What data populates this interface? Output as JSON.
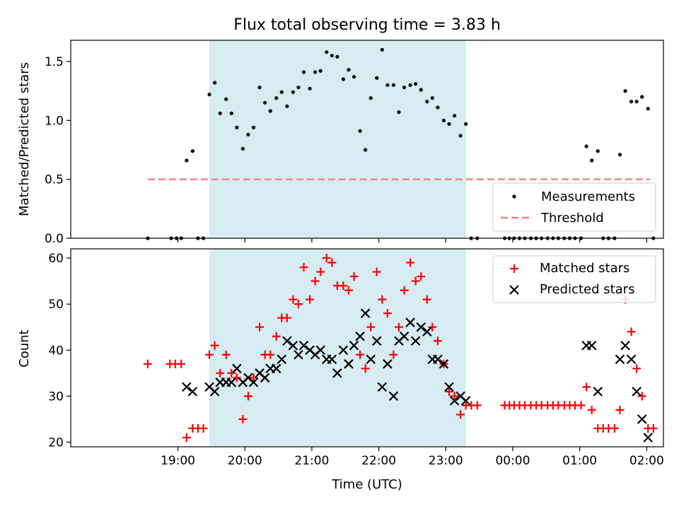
{
  "chart_data": {
    "type": "scatter",
    "title": "Flux total observing time = 3.83 h",
    "xlabel": "Time (UTC)",
    "x_ticks": [
      "19:00",
      "20:00",
      "21:00",
      "22:00",
      "23:00",
      "00:00",
      "01:00",
      "02:00"
    ],
    "x_range_hours": [
      17.4,
      26.25
    ],
    "highlight_span_hours": [
      19.47,
      23.3
    ],
    "highlight_color": "#add8e6",
    "panels": [
      {
        "ylabel": "Matched/Predicted stars",
        "ylim": [
          0,
          1.68
        ],
        "y_ticks": [
          "0.0",
          "0.5",
          "1.0",
          "1.5"
        ],
        "legend_position": "lower right",
        "series": [
          {
            "name": "Measurements",
            "marker": "dot",
            "color": "#000000",
            "x": [
              18.55,
              18.9,
              18.98,
              19.05,
              19.13,
              19.22,
              19.3,
              19.38,
              19.47,
              19.55,
              19.63,
              19.72,
              19.8,
              19.88,
              19.97,
              20.05,
              20.13,
              20.22,
              20.3,
              20.38,
              20.47,
              20.55,
              20.63,
              20.72,
              20.8,
              20.88,
              20.97,
              21.05,
              21.13,
              21.22,
              21.3,
              21.38,
              21.47,
              21.55,
              21.63,
              21.72,
              21.8,
              21.88,
              21.97,
              22.05,
              22.13,
              22.22,
              22.3,
              22.38,
              22.47,
              22.55,
              22.63,
              22.72,
              22.8,
              22.88,
              22.97,
              23.05,
              23.13,
              23.22,
              23.3,
              23.38,
              23.47,
              23.88,
              23.95,
              24.02,
              24.1,
              24.18,
              24.27,
              24.35,
              24.43,
              24.52,
              24.6,
              24.68,
              24.77,
              24.85,
              24.93,
              25.02,
              25.1,
              25.18,
              25.27,
              25.35,
              25.43,
              25.52,
              25.6,
              25.68,
              25.77,
              25.85,
              25.93,
              26.02,
              26.1
            ],
            "y": [
              0.0,
              0.0,
              0.0,
              0.0,
              0.66,
              0.74,
              0.0,
              0.0,
              1.22,
              1.32,
              1.06,
              1.18,
              1.06,
              0.94,
              0.76,
              0.88,
              0.94,
              1.28,
              1.15,
              1.08,
              1.19,
              1.24,
              1.12,
              1.24,
              1.28,
              1.41,
              1.27,
              1.41,
              1.42,
              1.58,
              1.55,
              1.54,
              1.35,
              1.43,
              1.37,
              0.91,
              0.75,
              1.19,
              1.36,
              1.6,
              1.3,
              1.3,
              1.07,
              1.28,
              1.3,
              1.31,
              1.26,
              1.16,
              1.19,
              1.11,
              1.0,
              0.97,
              1.04,
              0.87,
              0.97,
              0.0,
              0.0,
              0.0,
              0.0,
              0.0,
              0.0,
              0.0,
              0.0,
              0.0,
              0.0,
              0.0,
              0.0,
              0.0,
              0.0,
              0.0,
              0.0,
              0.0,
              0.78,
              0.66,
              0.74,
              0.0,
              0.0,
              0.0,
              0.71,
              1.25,
              1.16,
              1.16,
              1.2,
              1.1,
              0.0
            ]
          },
          {
            "name": "Threshold",
            "marker": "dashed-line",
            "color": "#f08080",
            "x": [
              18.55,
              26.05
            ],
            "y": [
              0.5,
              0.5
            ]
          }
        ]
      },
      {
        "ylabel": "Count",
        "ylim": [
          19,
          62
        ],
        "y_ticks": [
          "20",
          "30",
          "40",
          "50",
          "60"
        ],
        "legend_position": "upper right",
        "series": [
          {
            "name": "Matched stars",
            "marker": "plus",
            "color": "#ff0000",
            "x": [
              18.55,
              18.88,
              18.96,
              19.05,
              19.13,
              19.22,
              19.3,
              19.38,
              19.47,
              19.55,
              19.63,
              19.72,
              19.8,
              19.88,
              19.97,
              20.05,
              20.13,
              20.22,
              20.3,
              20.38,
              20.47,
              20.55,
              20.63,
              20.72,
              20.8,
              20.88,
              20.97,
              21.05,
              21.13,
              21.22,
              21.3,
              21.38,
              21.47,
              21.55,
              21.63,
              21.72,
              21.8,
              21.88,
              21.97,
              22.05,
              22.13,
              22.22,
              22.3,
              22.38,
              22.47,
              22.55,
              22.63,
              22.72,
              22.8,
              22.88,
              22.97,
              23.05,
              23.13,
              23.22,
              23.3,
              23.38,
              23.47,
              23.88,
              23.95,
              24.02,
              24.1,
              24.18,
              24.27,
              24.35,
              24.43,
              24.52,
              24.6,
              24.68,
              24.77,
              24.85,
              24.93,
              25.02,
              25.1,
              25.18,
              25.27,
              25.35,
              25.43,
              25.52,
              25.6,
              25.68,
              25.77,
              25.85,
              25.93,
              26.02,
              26.1
            ],
            "y": [
              37,
              37,
              37,
              37,
              21,
              23,
              23,
              23,
              39,
              41,
              35,
              39,
              35,
              34,
              25,
              30,
              34,
              45,
              39,
              39,
              43,
              47,
              47,
              51,
              50,
              58,
              51,
              55,
              57,
              60,
              59,
              54,
              54,
              53,
              56,
              39,
              36,
              45,
              57,
              51,
              48,
              39,
              45,
              53,
              59,
              55,
              56,
              51,
              45,
              42,
              37,
              31,
              30,
              26,
              28,
              28,
              28,
              28,
              28,
              28,
              28,
              28,
              28,
              28,
              28,
              28,
              28,
              28,
              28,
              28,
              28,
              28,
              32,
              27,
              23,
              23,
              23,
              23,
              27,
              51,
              44,
              36,
              30,
              23,
              23
            ]
          },
          {
            "name": "Predicted stars",
            "marker": "x",
            "color": "#000000",
            "x": [
              19.13,
              19.22,
              19.47,
              19.55,
              19.63,
              19.72,
              19.8,
              19.88,
              19.97,
              20.05,
              20.13,
              20.22,
              20.3,
              20.38,
              20.47,
              20.55,
              20.63,
              20.72,
              20.8,
              20.88,
              20.97,
              21.05,
              21.13,
              21.22,
              21.3,
              21.38,
              21.47,
              21.55,
              21.63,
              21.72,
              21.8,
              21.88,
              21.97,
              22.05,
              22.13,
              22.22,
              22.3,
              22.38,
              22.47,
              22.55,
              22.63,
              22.72,
              22.8,
              22.88,
              22.97,
              23.05,
              23.13,
              23.22,
              23.3,
              25.1,
              25.18,
              25.27,
              25.6,
              25.68,
              25.77,
              25.85,
              25.93,
              26.02
            ],
            "y": [
              32,
              31,
              32,
              31,
              33,
              33,
              33,
              36,
              33,
              34,
              33,
              35,
              34,
              36,
              36,
              38,
              42,
              41,
              39,
              41,
              40,
              39,
              40,
              38,
              38,
              35,
              40,
              37,
              41,
              43,
              48,
              38,
              42,
              32,
              37,
              30,
              42,
              43,
              46,
              42,
              45,
              44,
              38,
              38,
              37,
              32,
              29,
              30,
              29,
              41,
              41,
              31,
              38,
              41,
              38,
              31,
              25,
              21
            ]
          }
        ]
      }
    ]
  }
}
